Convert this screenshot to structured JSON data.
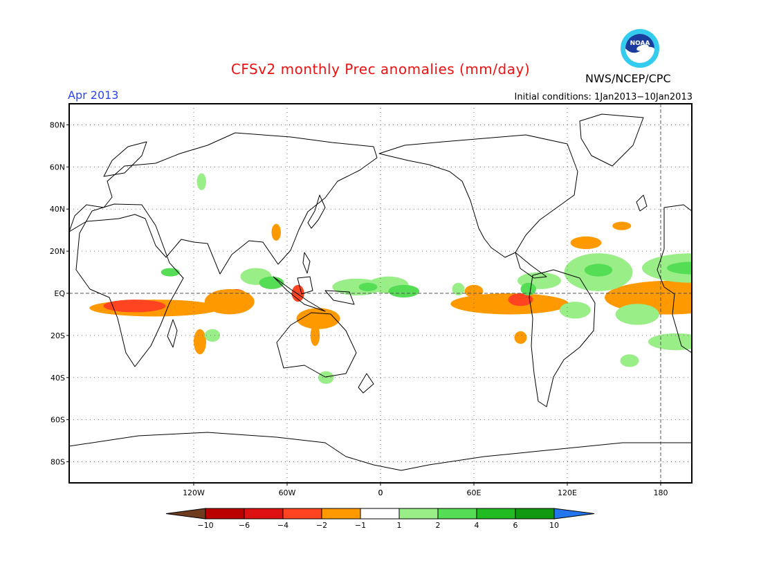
{
  "title": "CFSv2 monthly Prec anomalies (mm/day)",
  "agency": "NWS/NCEP/CPC",
  "logo_text": "NOAA",
  "month": "Apr 2013",
  "initial_conditions": "Initial conditions: 1Jan2013−10Jan2013",
  "colors": {
    "brown": "#6e3b1f",
    "darkred": "#bb0000",
    "red": "#dd1111",
    "orangered": "#ff4422",
    "orange": "#ff9900",
    "white": "#ffffff",
    "lightgreen": "#99ee88",
    "green": "#55dd55",
    "midgreen": "#22bb22",
    "darkgreen": "#119911",
    "blue": "#2277ee",
    "title_red": "#ee1111",
    "month_blue": "#2a44ee"
  },
  "map": {
    "central_longitude": 180,
    "lon_range": [
      -200,
      200
    ],
    "lat_range": [
      -90,
      90
    ],
    "lat_ticks": [
      {
        "value": 80,
        "label": "80N"
      },
      {
        "value": 60,
        "label": "60N"
      },
      {
        "value": 40,
        "label": "40N"
      },
      {
        "value": 20,
        "label": "20N"
      },
      {
        "value": 0,
        "label": "EQ"
      },
      {
        "value": -20,
        "label": "20S"
      },
      {
        "value": -40,
        "label": "40S"
      },
      {
        "value": -60,
        "label": "60S"
      },
      {
        "value": -80,
        "label": "80S"
      }
    ],
    "lon_ticks": [
      {
        "value": 0,
        "label": "0"
      },
      {
        "value": 60,
        "label": "60E"
      },
      {
        "value": 120,
        "label": "120E"
      },
      {
        "value": 180,
        "label": "180"
      },
      {
        "value": 240,
        "label": "120W"
      },
      {
        "value": 300,
        "label": "60W"
      },
      {
        "value": 360,
        "label": "0"
      }
    ],
    "grid": "dotted",
    "reference_lines": [
      "equator",
      "dateline"
    ]
  },
  "colorbar": {
    "labels": [
      "−10",
      "−6",
      "−4",
      "−2",
      "−1",
      "1",
      "2",
      "4",
      "6",
      "10"
    ],
    "bins": [
      "darkred",
      "red",
      "orangered",
      "orange",
      "white",
      "lightgreen",
      "green",
      "midgreen",
      "darkgreen"
    ],
    "low_extend": "brown",
    "high_extend": "blue"
  },
  "anomalies": [
    {
      "lon": 182,
      "lat": -4,
      "rx": 24,
      "ry": 6,
      "level": "orangered"
    },
    {
      "lon": 186,
      "lat": -2,
      "rx": 42,
      "ry": 8,
      "level": "orange"
    },
    {
      "lon": 215,
      "lat": -7,
      "rx": 42,
      "ry": 4,
      "level": "orange"
    },
    {
      "lon": 202,
      "lat": -6,
      "rx": 20,
      "ry": 3,
      "level": "orangered"
    },
    {
      "lon": 83,
      "lat": -5,
      "rx": 38,
      "ry": 5,
      "level": "orange"
    },
    {
      "lon": 90,
      "lat": -3,
      "rx": 8,
      "ry": 3,
      "level": "orangered"
    },
    {
      "lon": 267,
      "lat": -2,
      "rx": 8,
      "ry": 4,
      "level": "orangered"
    },
    {
      "lon": 263,
      "lat": -4,
      "rx": 16,
      "ry": 6,
      "level": "orange"
    },
    {
      "lon": 320,
      "lat": -12,
      "rx": 14,
      "ry": 5,
      "level": "orange"
    },
    {
      "lon": 307,
      "lat": 0,
      "rx": 4,
      "ry": 4,
      "level": "orangered"
    },
    {
      "lon": 132,
      "lat": 24,
      "rx": 10,
      "ry": 3,
      "level": "orange"
    },
    {
      "lon": 60,
      "lat": 1,
      "rx": 6,
      "ry": 3,
      "level": "orange"
    },
    {
      "lon": 90,
      "lat": -21,
      "rx": 4,
      "ry": 3,
      "level": "orange"
    },
    {
      "lon": 244,
      "lat": -23,
      "rx": 4,
      "ry": 6,
      "level": "orange"
    },
    {
      "lon": 155,
      "lat": 32,
      "rx": 6,
      "ry": 2,
      "level": "orange"
    },
    {
      "lon": 293,
      "lat": 29,
      "rx": 3,
      "ry": 4,
      "level": "orange"
    },
    {
      "lon": 318,
      "lat": -20,
      "rx": 3,
      "ry": 5,
      "level": "orange"
    },
    {
      "lon": 200,
      "lat": 12,
      "rx": 32,
      "ry": 7,
      "level": "lightgreen"
    },
    {
      "lon": 200,
      "lat": 12,
      "rx": 16,
      "ry": 3,
      "level": "green"
    },
    {
      "lon": 140,
      "lat": 10,
      "rx": 22,
      "ry": 9,
      "level": "lightgreen"
    },
    {
      "lon": 140,
      "lat": 11,
      "rx": 9,
      "ry": 3,
      "level": "green"
    },
    {
      "lon": 102,
      "lat": 6,
      "rx": 14,
      "ry": 4,
      "level": "lightgreen"
    },
    {
      "lon": 125,
      "lat": -8,
      "rx": 10,
      "ry": 4,
      "level": "lightgreen"
    },
    {
      "lon": 165,
      "lat": -10,
      "rx": 14,
      "ry": 5,
      "level": "lightgreen"
    },
    {
      "lon": 190,
      "lat": -23,
      "rx": 18,
      "ry": 4,
      "level": "lightgreen"
    },
    {
      "lon": 160,
      "lat": -32,
      "rx": 6,
      "ry": 3,
      "level": "lightgreen"
    },
    {
      "lon": 5,
      "lat": 4,
      "rx": 13,
      "ry": 4,
      "level": "lightgreen"
    },
    {
      "lon": 15,
      "lat": 1,
      "rx": 10,
      "ry": 3,
      "level": "green"
    },
    {
      "lon": 345,
      "lat": 3,
      "rx": 16,
      "ry": 4,
      "level": "lightgreen"
    },
    {
      "lon": 352,
      "lat": 3,
      "rx": 6,
      "ry": 2,
      "level": "green"
    },
    {
      "lon": 280,
      "lat": 8,
      "rx": 10,
      "ry": 4,
      "level": "lightgreen"
    },
    {
      "lon": 290,
      "lat": 5,
      "rx": 8,
      "ry": 3,
      "level": "green"
    },
    {
      "lon": 252,
      "lat": -20,
      "rx": 5,
      "ry": 3,
      "level": "lightgreen"
    },
    {
      "lon": 325,
      "lat": -40,
      "rx": 5,
      "ry": 3,
      "level": "lightgreen"
    },
    {
      "lon": 245,
      "lat": 53,
      "rx": 3,
      "ry": 4,
      "level": "lightgreen"
    },
    {
      "lon": 95,
      "lat": 2,
      "rx": 5,
      "ry": 3,
      "level": "green"
    },
    {
      "lon": 50,
      "lat": 2,
      "rx": 4,
      "ry": 3,
      "level": "lightgreen"
    },
    {
      "lon": 225,
      "lat": 10,
      "rx": 6,
      "ry": 2,
      "level": "green"
    }
  ]
}
